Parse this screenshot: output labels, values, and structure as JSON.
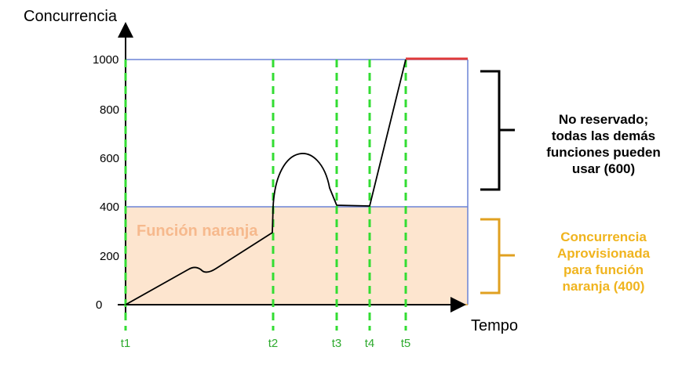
{
  "y_axis_title": "Concurrencia",
  "x_axis_title": "Tempo",
  "y_ticks": [
    "0",
    "200",
    "400",
    "600",
    "800",
    "1000"
  ],
  "time_markers": [
    "t1",
    "t2",
    "t3",
    "t4",
    "t5"
  ],
  "region_label": "Función naranja",
  "annotations": {
    "unreserved": [
      "No reservado;",
      "todas las demás",
      "funciones pueden",
      "usar (600)"
    ],
    "provisioned": [
      "Concurrencia",
      "Aprovisionada",
      "para función",
      "naranja (400)"
    ]
  },
  "colors": {
    "provisioned_fill": "#fde5cf",
    "limit_lines": "#6b83d6",
    "markers": "#33dd33",
    "throttle": "#e03a3a",
    "unreserved_bracket": "#000000",
    "provisioned_bracket": "#e0a020"
  }
}
